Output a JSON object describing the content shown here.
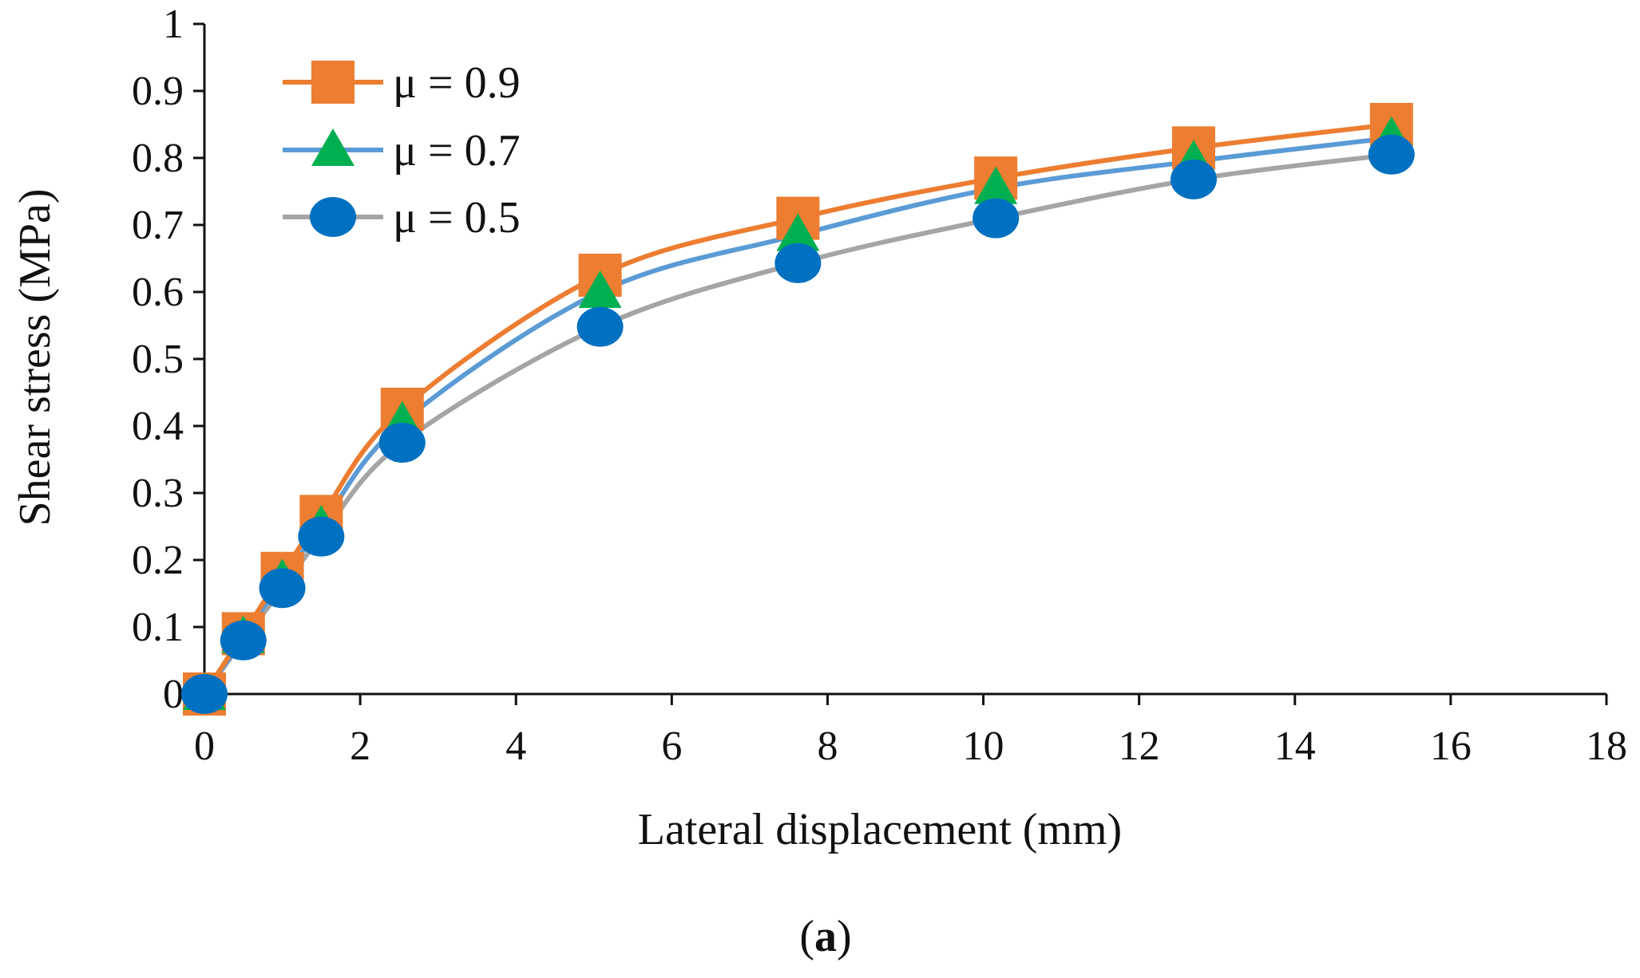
{
  "chart_data": {
    "type": "line",
    "title": "",
    "xlabel": "Lateral displacement (mm)",
    "ylabel": "Shear stress (MPa)",
    "xlim": [
      0,
      18
    ],
    "ylim": [
      0,
      1
    ],
    "xticks": [
      0,
      2,
      4,
      6,
      8,
      10,
      12,
      14,
      16,
      18
    ],
    "yticks": [
      0,
      0.1,
      0.2,
      0.3,
      0.4,
      0.5,
      0.6,
      0.7,
      0.8,
      0.9,
      1
    ],
    "xtick_labels": [
      "0",
      "2",
      "4",
      "6",
      "8",
      "10",
      "12",
      "14",
      "16",
      "18"
    ],
    "ytick_labels": [
      "0",
      "0.1",
      "0.2",
      "0.3",
      "0.4",
      "0.5",
      "0.6",
      "0.7",
      "0.8",
      "0.9",
      "1"
    ],
    "grid": false,
    "legend_position": "top-left",
    "panel_label": "a",
    "panel_label_open": "(",
    "panel_label_close": ")",
    "series": [
      {
        "name": "μ = 0.9",
        "color": "#ED7D31",
        "marker": "square",
        "x": [
          0,
          0.5,
          1.0,
          1.5,
          2.54,
          5.08,
          7.62,
          10.16,
          12.7,
          15.24
        ],
        "y": [
          0,
          0.09,
          0.18,
          0.265,
          0.425,
          0.625,
          0.71,
          0.77,
          0.815,
          0.85
        ]
      },
      {
        "name": "μ = 0.7",
        "color": "#5B9BD5",
        "marker": "triangle",
        "marker_color": "#00B050",
        "x": [
          0,
          0.5,
          1.0,
          1.5,
          2.54,
          5.08,
          7.62,
          10.16,
          12.7,
          15.24
        ],
        "y": [
          0,
          0.085,
          0.17,
          0.25,
          0.405,
          0.6,
          0.685,
          0.755,
          0.795,
          0.83
        ]
      },
      {
        "name": "μ = 0.5",
        "color": "#A5A5A5",
        "marker": "circle",
        "marker_color": "#0070C0",
        "x": [
          0,
          0.5,
          1.0,
          1.5,
          2.54,
          5.08,
          7.62,
          10.16,
          12.7,
          15.24
        ],
        "y": [
          0,
          0.08,
          0.158,
          0.235,
          0.375,
          0.548,
          0.643,
          0.71,
          0.768,
          0.805
        ]
      }
    ]
  }
}
